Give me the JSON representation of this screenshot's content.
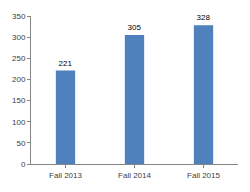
{
  "chart_data": {
    "type": "bar",
    "categories": [
      "Fall 2013",
      "Fall 2014",
      "Fall 2015"
    ],
    "values": [
      221,
      305,
      328
    ],
    "color": "#4f81bd",
    "ylim": [
      0,
      350
    ],
    "yticks": [
      0,
      50,
      100,
      150,
      200,
      250,
      300,
      350
    ],
    "grid": false,
    "data_labels": true
  }
}
